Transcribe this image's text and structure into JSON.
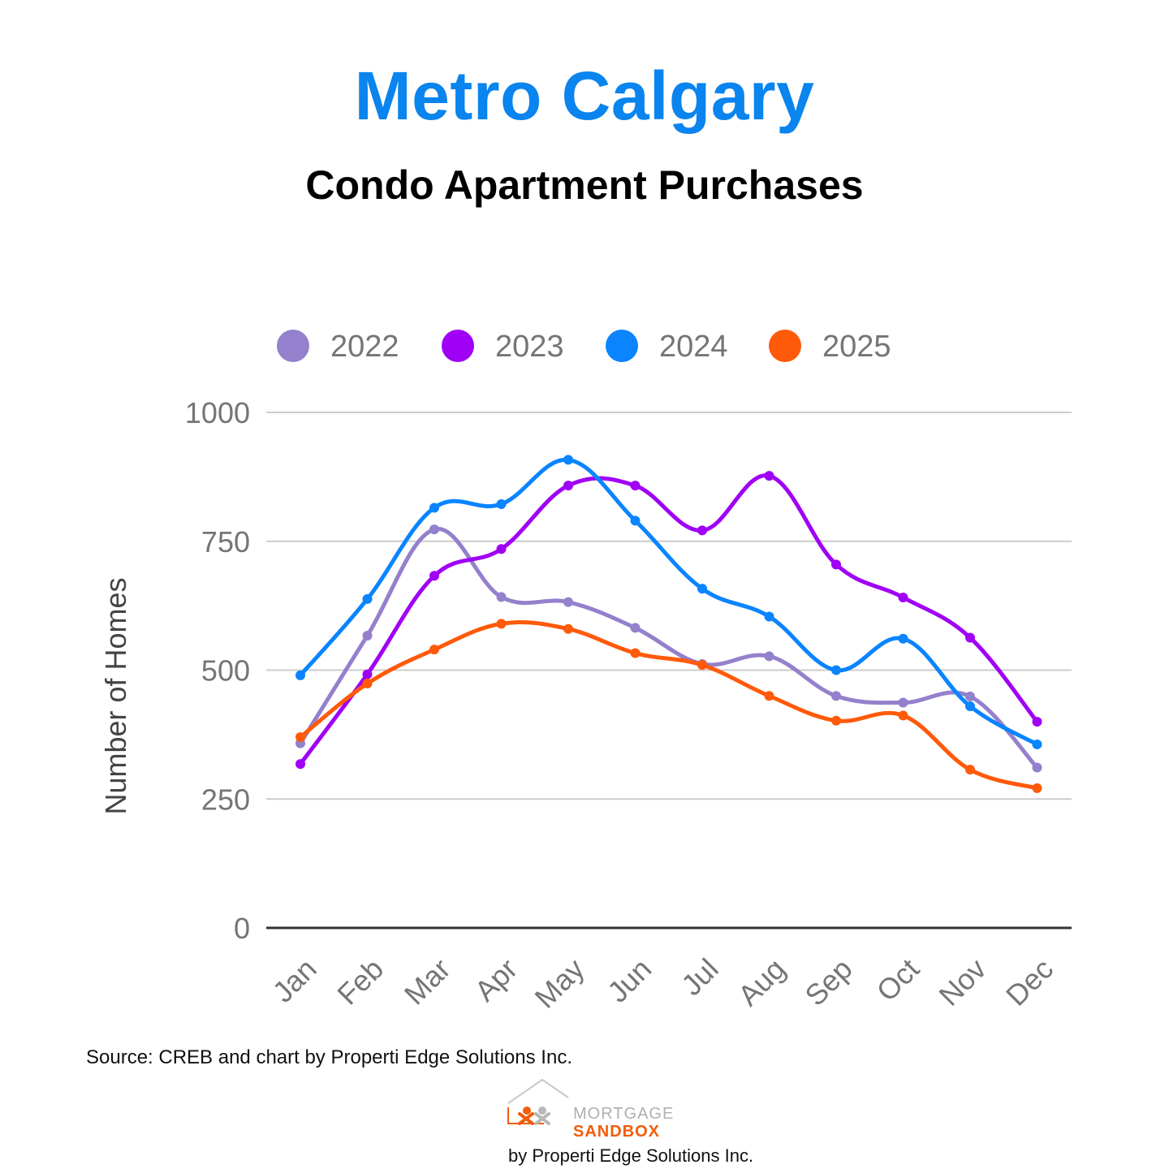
{
  "header": {
    "title": "Metro Calgary",
    "subtitle": "Condo Apartment Purchases"
  },
  "footer": {
    "source": "Source: CREB and chart by Properti Edge Solutions Inc.",
    "logo_line1": "MORTGAGE",
    "logo_line2": "SANDBOX",
    "byline": "by Properti Edge Solutions Inc."
  },
  "colors": {
    "title": "#0a84ee",
    "grid": "#cccccc",
    "baseline": "#333333",
    "axis_text": "#757575"
  },
  "chart_data": {
    "type": "line",
    "title": "",
    "xlabel": "",
    "ylabel": "Number of Homes",
    "ylim": [
      0,
      1000
    ],
    "yticks": [
      0,
      250,
      500,
      750,
      1000
    ],
    "grid": true,
    "legend_position": "top",
    "categories": [
      "Jan",
      "Feb",
      "Mar",
      "Apr",
      "May",
      "Jun",
      "Jul",
      "Aug",
      "Sep",
      "Oct",
      "Nov",
      "Dec"
    ],
    "series": [
      {
        "name": "2022",
        "color": "#9480cc",
        "values": [
          358,
          567,
          773,
          642,
          632,
          582,
          512,
          527,
          450,
          437,
          449,
          311
        ]
      },
      {
        "name": "2023",
        "color": "#a000f5",
        "values": [
          318,
          492,
          683,
          735,
          858,
          858,
          771,
          877,
          705,
          641,
          563,
          400
        ]
      },
      {
        "name": "2024",
        "color": "#0a84ff",
        "values": [
          490,
          638,
          815,
          822,
          908,
          790,
          658,
          604,
          500,
          561,
          430,
          356
        ]
      },
      {
        "name": "2025",
        "color": "#ff5a0a",
        "values": [
          370,
          474,
          540,
          590,
          580,
          533,
          510,
          450,
          402,
          412,
          307,
          271
        ]
      }
    ]
  }
}
